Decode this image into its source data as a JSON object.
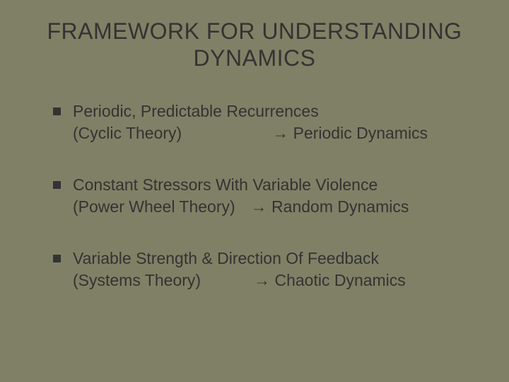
{
  "slide": {
    "background_color": "#808066",
    "text_color": "#333333",
    "title_fontsize": 32,
    "body_fontsize": 23,
    "bullet_shape": "square",
    "bullet_color": "#333333",
    "title": "FRAMEWORK FOR UNDERSTANDING DYNAMICS",
    "arrow_glyph": "→",
    "items": [
      {
        "line1": "Periodic, Predictable Recurrences",
        "theory": "(Cyclic Theory)",
        "result": "Periodic Dynamics"
      },
      {
        "line1": "Constant Stressors With Variable Violence",
        "theory": "(Power Wheel Theory)",
        "result": "Random Dynamics"
      },
      {
        "line1": "Variable Strength & Direction Of Feedback",
        "theory": "(Systems Theory)",
        "result": "Chaotic Dynamics"
      }
    ]
  }
}
